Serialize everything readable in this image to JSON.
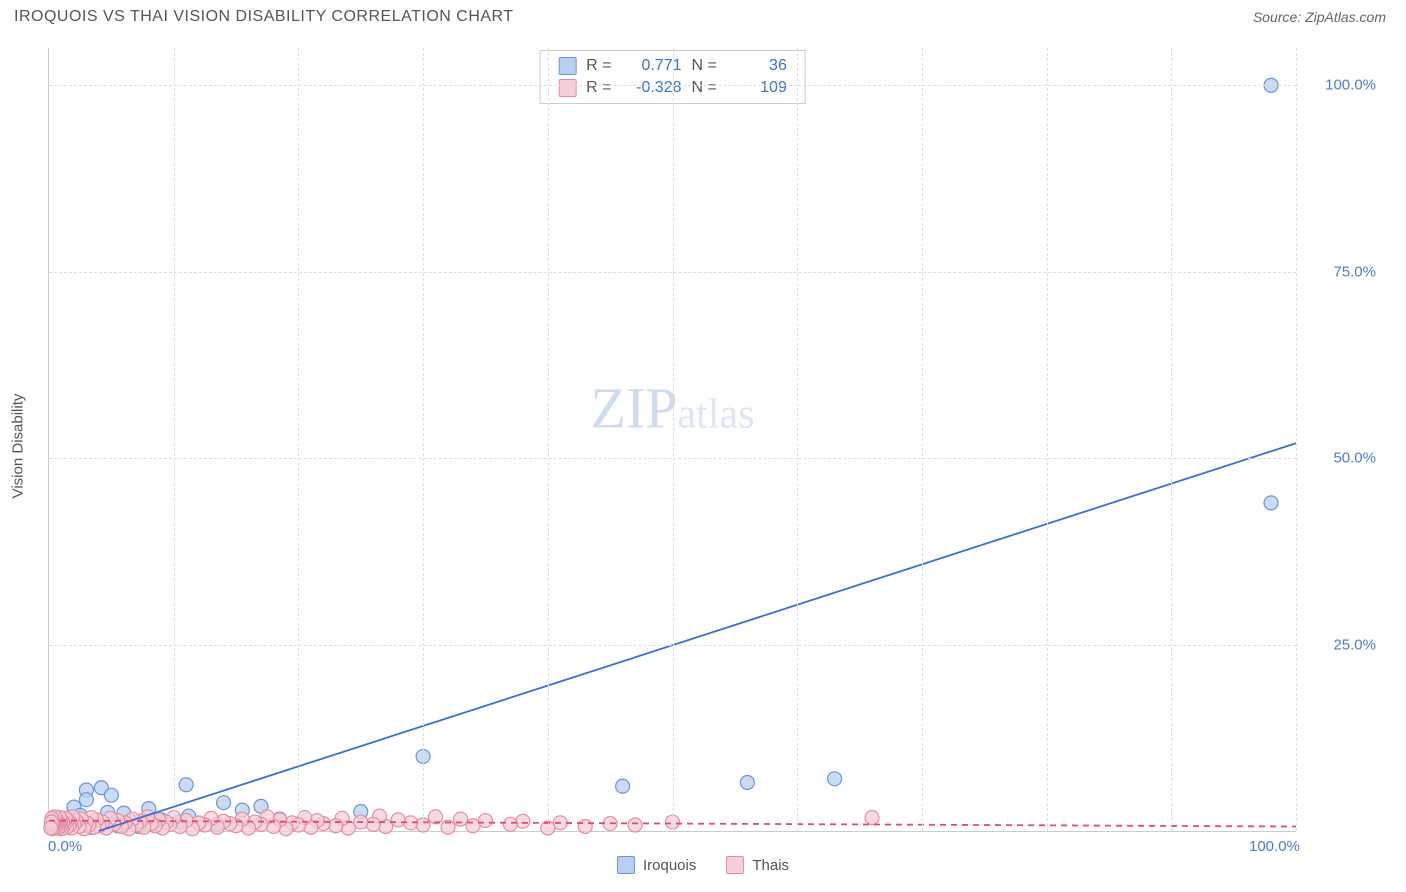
{
  "header": {
    "title": "IROQUOIS VS THAI VISION DISABILITY CORRELATION CHART",
    "source_prefix": "Source: ",
    "source_name": "ZipAtlas.com"
  },
  "watermark": {
    "zip": "ZIP",
    "atlas": "atlas"
  },
  "chart": {
    "type": "scatter",
    "background_color": "#ffffff",
    "grid_color": "#dddddd",
    "axis_color": "#cccccc",
    "text_color": "#555555",
    "tick_label_color": "#4a7bd4",
    "yaxis_title": "Vision Disability",
    "xlim": [
      0,
      100
    ],
    "ylim": [
      0,
      105
    ],
    "xticks": [
      0,
      100
    ],
    "xtick_labels": [
      "0.0%",
      "100.0%"
    ],
    "yticks": [
      25,
      50,
      75,
      100
    ],
    "ytick_labels": [
      "25.0%",
      "50.0%",
      "75.0%",
      "100.0%"
    ],
    "vgrid_positions": [
      10,
      20,
      30,
      40,
      50,
      60,
      70,
      80,
      90,
      100
    ],
    "marker_radius": 7,
    "marker_stroke_width": 1.2,
    "line_width": 1.8,
    "series": [
      {
        "name": "Iroquois",
        "color_fill": "#b9cff0",
        "color_stroke": "#6a96d9",
        "line_color": "#3a6fd4",
        "line_dash": "none",
        "r_value": "0.771",
        "n_value": "36",
        "regression_line": {
          "x1": 4,
          "y1": 0,
          "x2": 100,
          "y2": 52
        },
        "points": [
          {
            "x": 98,
            "y": 100
          },
          {
            "x": 98,
            "y": 44
          },
          {
            "x": 30,
            "y": 10
          },
          {
            "x": 46,
            "y": 6
          },
          {
            "x": 56,
            "y": 6.5
          },
          {
            "x": 63,
            "y": 7
          },
          {
            "x": 11,
            "y": 6.2
          },
          {
            "x": 3,
            "y": 5.5
          },
          {
            "x": 4.2,
            "y": 5.8
          },
          {
            "x": 5,
            "y": 4.8
          },
          {
            "x": 14,
            "y": 3.8
          },
          {
            "x": 15.5,
            "y": 2.8
          },
          {
            "x": 17,
            "y": 3.3
          },
          {
            "x": 8,
            "y": 3.0
          },
          {
            "x": 25,
            "y": 2.6
          },
          {
            "x": 2,
            "y": 3.2
          },
          {
            "x": 2.5,
            "y": 2.1
          },
          {
            "x": 6,
            "y": 2.4
          },
          {
            "x": 9,
            "y": 1.5
          },
          {
            "x": 10.5,
            "y": 1.2
          },
          {
            "x": 12,
            "y": 1.0
          },
          {
            "x": 13.5,
            "y": 0.9
          },
          {
            "x": 4,
            "y": 1.0
          },
          {
            "x": 5.5,
            "y": 0.7
          },
          {
            "x": 7.2,
            "y": 0.6
          },
          {
            "x": 1,
            "y": 1.7
          },
          {
            "x": 1.5,
            "y": 1.2
          },
          {
            "x": 2.8,
            "y": 0.8
          },
          {
            "x": 3.4,
            "y": 0.5
          },
          {
            "x": 0.5,
            "y": 0.6
          },
          {
            "x": 0.8,
            "y": 1.0
          },
          {
            "x": 6.5,
            "y": 1.3
          },
          {
            "x": 11.2,
            "y": 2.0
          },
          {
            "x": 4.7,
            "y": 2.5
          },
          {
            "x": 3.0,
            "y": 4.2
          },
          {
            "x": 18.5,
            "y": 1.6
          }
        ]
      },
      {
        "name": "Thais",
        "color_fill": "#f6cfd8",
        "color_stroke": "#e58da3",
        "line_color": "#e24a6f",
        "line_dash": "6,5",
        "r_value": "-0.328",
        "n_value": "109",
        "regression_line": {
          "x1": 0,
          "y1": 1.4,
          "x2": 100,
          "y2": 0.6
        },
        "points": [
          {
            "x": 66,
            "y": 1.8
          },
          {
            "x": 50,
            "y": 1.2
          },
          {
            "x": 47,
            "y": 0.8
          },
          {
            "x": 45,
            "y": 1.0
          },
          {
            "x": 43,
            "y": 0.6
          },
          {
            "x": 41,
            "y": 1.1
          },
          {
            "x": 40,
            "y": 0.4
          },
          {
            "x": 38,
            "y": 1.3
          },
          {
            "x": 37,
            "y": 0.9
          },
          {
            "x": 35,
            "y": 1.4
          },
          {
            "x": 34,
            "y": 0.7
          },
          {
            "x": 33,
            "y": 1.6
          },
          {
            "x": 32,
            "y": 0.5
          },
          {
            "x": 31,
            "y": 1.9
          },
          {
            "x": 30,
            "y": 0.8
          },
          {
            "x": 29,
            "y": 1.1
          },
          {
            "x": 28,
            "y": 1.5
          },
          {
            "x": 27,
            "y": 0.6
          },
          {
            "x": 26.5,
            "y": 2.0
          },
          {
            "x": 26,
            "y": 0.9
          },
          {
            "x": 25,
            "y": 1.2
          },
          {
            "x": 24,
            "y": 0.4
          },
          {
            "x": 23.5,
            "y": 1.7
          },
          {
            "x": 23,
            "y": 0.7
          },
          {
            "x": 22,
            "y": 1.0
          },
          {
            "x": 21.5,
            "y": 1.4
          },
          {
            "x": 21,
            "y": 0.5
          },
          {
            "x": 20.5,
            "y": 1.8
          },
          {
            "x": 20,
            "y": 0.8
          },
          {
            "x": 19.5,
            "y": 1.1
          },
          {
            "x": 19,
            "y": 0.3
          },
          {
            "x": 18.5,
            "y": 1.5
          },
          {
            "x": 18,
            "y": 0.6
          },
          {
            "x": 17.5,
            "y": 1.9
          },
          {
            "x": 17,
            "y": 0.9
          },
          {
            "x": 16.5,
            "y": 1.2
          },
          {
            "x": 16,
            "y": 0.4
          },
          {
            "x": 15.5,
            "y": 1.6
          },
          {
            "x": 15,
            "y": 0.7
          },
          {
            "x": 14.5,
            "y": 1.0
          },
          {
            "x": 14,
            "y": 1.3
          },
          {
            "x": 13.5,
            "y": 0.5
          },
          {
            "x": 13,
            "y": 1.7
          },
          {
            "x": 12.5,
            "y": 0.8
          },
          {
            "x": 12,
            "y": 1.1
          },
          {
            "x": 11.5,
            "y": 0.3
          },
          {
            "x": 11,
            "y": 1.4
          },
          {
            "x": 10.5,
            "y": 0.6
          },
          {
            "x": 10,
            "y": 1.8
          },
          {
            "x": 9.7,
            "y": 0.9
          },
          {
            "x": 9.4,
            "y": 1.2
          },
          {
            "x": 9.1,
            "y": 0.4
          },
          {
            "x": 8.8,
            "y": 1.5
          },
          {
            "x": 8.5,
            "y": 0.7
          },
          {
            "x": 8.2,
            "y": 1.0
          },
          {
            "x": 7.9,
            "y": 1.9
          },
          {
            "x": 7.6,
            "y": 0.5
          },
          {
            "x": 7.3,
            "y": 1.3
          },
          {
            "x": 7.0,
            "y": 0.8
          },
          {
            "x": 6.7,
            "y": 1.6
          },
          {
            "x": 6.4,
            "y": 0.3
          },
          {
            "x": 6.1,
            "y": 1.1
          },
          {
            "x": 5.8,
            "y": 0.6
          },
          {
            "x": 5.5,
            "y": 1.4
          },
          {
            "x": 5.2,
            "y": 0.9
          },
          {
            "x": 4.9,
            "y": 1.7
          },
          {
            "x": 4.6,
            "y": 0.4
          },
          {
            "x": 4.3,
            "y": 1.2
          },
          {
            "x": 4.0,
            "y": 0.7
          },
          {
            "x": 3.8,
            "y": 1.5
          },
          {
            "x": 3.6,
            "y": 0.5
          },
          {
            "x": 3.4,
            "y": 1.8
          },
          {
            "x": 3.2,
            "y": 0.8
          },
          {
            "x": 3.0,
            "y": 1.1
          },
          {
            "x": 2.8,
            "y": 0.3
          },
          {
            "x": 2.6,
            "y": 1.6
          },
          {
            "x": 2.4,
            "y": 0.6
          },
          {
            "x": 2.2,
            "y": 1.3
          },
          {
            "x": 2.0,
            "y": 0.9
          },
          {
            "x": 1.9,
            "y": 1.9
          },
          {
            "x": 1.8,
            "y": 0.4
          },
          {
            "x": 1.7,
            "y": 1.0
          },
          {
            "x": 1.6,
            "y": 0.7
          },
          {
            "x": 1.5,
            "y": 1.4
          },
          {
            "x": 1.4,
            "y": 0.5
          },
          {
            "x": 1.3,
            "y": 1.7
          },
          {
            "x": 1.2,
            "y": 0.8
          },
          {
            "x": 1.1,
            "y": 1.2
          },
          {
            "x": 1.0,
            "y": 0.3
          },
          {
            "x": 0.95,
            "y": 1.5
          },
          {
            "x": 0.9,
            "y": 0.6
          },
          {
            "x": 0.85,
            "y": 1.8
          },
          {
            "x": 0.8,
            "y": 0.9
          },
          {
            "x": 0.75,
            "y": 1.1
          },
          {
            "x": 0.7,
            "y": 0.4
          },
          {
            "x": 0.65,
            "y": 1.3
          },
          {
            "x": 0.6,
            "y": 0.7
          },
          {
            "x": 0.55,
            "y": 1.6
          },
          {
            "x": 0.5,
            "y": 0.5
          },
          {
            "x": 0.45,
            "y": 1.9
          },
          {
            "x": 0.4,
            "y": 0.8
          },
          {
            "x": 0.35,
            "y": 1.0
          },
          {
            "x": 0.3,
            "y": 0.3
          },
          {
            "x": 0.28,
            "y": 1.4
          },
          {
            "x": 0.26,
            "y": 0.6
          },
          {
            "x": 0.24,
            "y": 1.7
          },
          {
            "x": 0.22,
            "y": 0.9
          },
          {
            "x": 0.2,
            "y": 1.2
          },
          {
            "x": 0.15,
            "y": 0.4
          }
        ]
      }
    ]
  },
  "legend_top": {
    "r_label": "R =",
    "n_label": "N ="
  },
  "legend_bottom": {
    "items": [
      {
        "label": "Iroquois",
        "swatch": "blue"
      },
      {
        "label": "Thais",
        "swatch": "pink"
      }
    ]
  }
}
